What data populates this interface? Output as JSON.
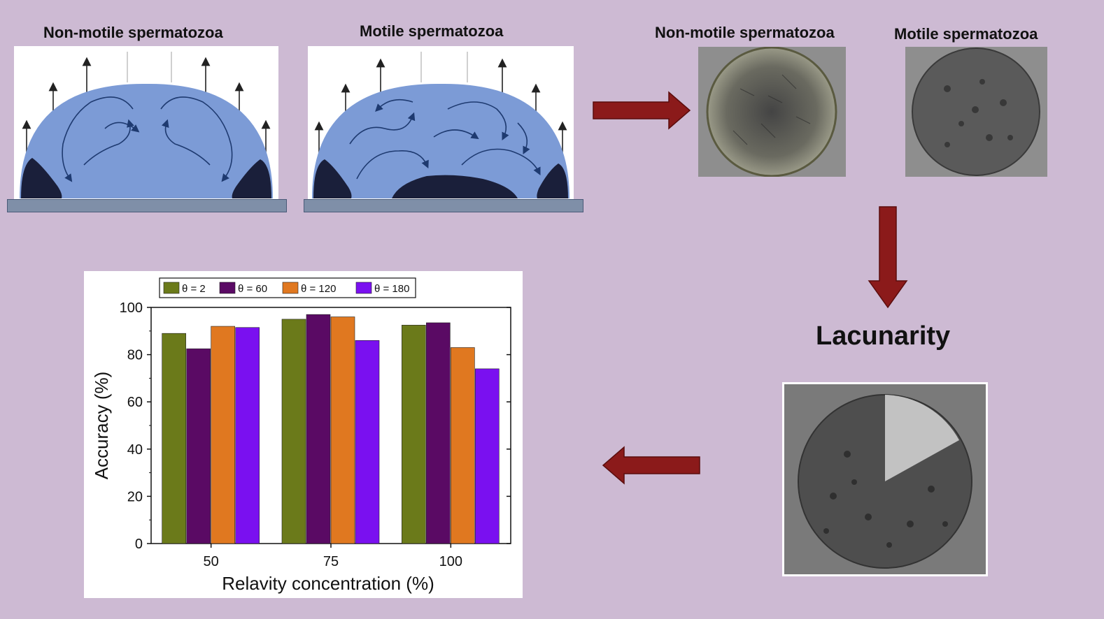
{
  "schematic": {
    "left_title": "Non-motile spermatozoa",
    "right_title": "Motile spermatozoa"
  },
  "micrographs": {
    "left_title": "Non-motile spermatozoa",
    "right_title": "Motile spermatozoa"
  },
  "method_label": "Lacunarity",
  "colors": {
    "background": "#cdbad3",
    "droplet": "#7c9bd6",
    "arrow": "#8b1a1a",
    "theta_2": "#6b7a1a",
    "theta_60": "#5a0a64",
    "theta_120": "#e07820",
    "theta_180": "#7a10f0"
  },
  "chart_data": {
    "type": "bar",
    "categories": [
      "50",
      "75",
      "100"
    ],
    "series": [
      {
        "name": "θ = 2",
        "values": [
          89,
          95,
          92.5
        ]
      },
      {
        "name": "θ = 60",
        "values": [
          82.5,
          97,
          93.5
        ]
      },
      {
        "name": "θ = 120",
        "values": [
          92,
          96,
          83
        ]
      },
      {
        "name": "θ = 180",
        "values": [
          91.5,
          86,
          74
        ]
      }
    ],
    "xlabel": "Relavity concentration (%)",
    "ylabel": "Accuracy (%)",
    "ylim": [
      0,
      100
    ],
    "yticks": [
      "0",
      "20",
      "40",
      "60",
      "80",
      "100"
    ],
    "legend_position": "top",
    "grid": false
  }
}
